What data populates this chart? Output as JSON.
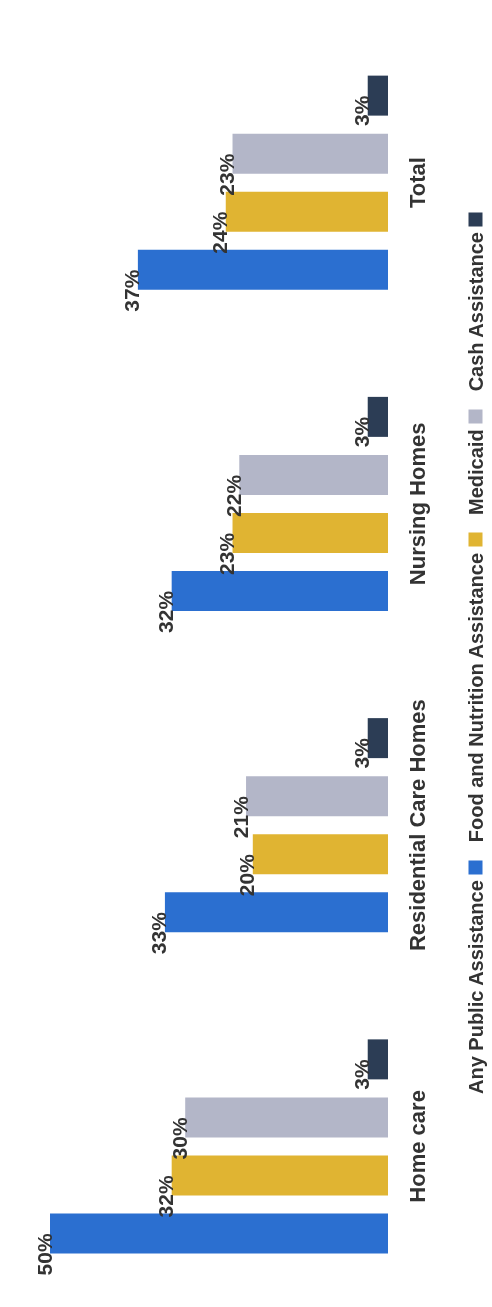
{
  "chart_data": {
    "type": "bar",
    "orientation": "horizontal",
    "categories": [
      "Total",
      "Nursing Homes",
      "Residential Care Homes",
      "Home care"
    ],
    "series": [
      {
        "name": "Any Public Assistance",
        "color": "#2b6fd0",
        "values": [
          37,
          32,
          33,
          50
        ],
        "value_labels": [
          "37%",
          "32%",
          "33%",
          "50%"
        ]
      },
      {
        "name": "Food and Nutrition Assistance",
        "color": "#e0b432",
        "values": [
          24,
          23,
          20,
          32
        ],
        "value_labels": [
          "24%",
          "23%",
          "20%",
          "32%"
        ]
      },
      {
        "name": "Medicaid",
        "color": "#b3b6c8",
        "values": [
          23,
          22,
          21,
          30
        ],
        "value_labels": [
          "23%",
          "22%",
          "21%",
          "30%"
        ]
      },
      {
        "name": "Cash Assistance",
        "color": "#2c3d55",
        "values": [
          3,
          3,
          3,
          3
        ],
        "value_labels": [
          "3%",
          "3%",
          "3%",
          "3%"
        ]
      }
    ],
    "legend": "right"
  }
}
